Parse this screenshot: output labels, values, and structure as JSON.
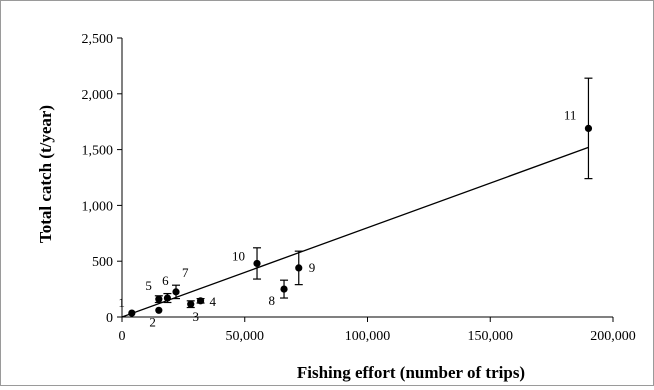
{
  "chart_data": {
    "type": "scatter",
    "xlabel": "Fishing effort (number of trips)",
    "ylabel": "Total  catch (t/year)",
    "xlim": [
      0,
      200000
    ],
    "ylim": [
      0,
      2500
    ],
    "x_ticks": [
      0,
      50000,
      100000,
      150000,
      200000
    ],
    "x_tick_labels": [
      "0",
      "50,000",
      "100,000",
      "150,000",
      "200,000"
    ],
    "y_ticks": [
      0,
      500,
      1000,
      1500,
      2000,
      2500
    ],
    "y_tick_labels": [
      "0",
      "500",
      "1,000",
      "1,500",
      "2,000",
      "2,500"
    ],
    "grid": false,
    "legend": "none",
    "marker_color": "#000000",
    "points": [
      {
        "label": "1",
        "x": 4000,
        "y": 35,
        "err": 0
      },
      {
        "label": "2",
        "x": 15000,
        "y": 60,
        "err": 0
      },
      {
        "label": "3",
        "x": 28000,
        "y": 115,
        "err": 30
      },
      {
        "label": "4",
        "x": 32000,
        "y": 145,
        "err": 20
      },
      {
        "label": "5",
        "x": 15000,
        "y": 160,
        "err": 30
      },
      {
        "label": "6",
        "x": 18500,
        "y": 170,
        "err": 40
      },
      {
        "label": "7",
        "x": 22000,
        "y": 225,
        "err": 60
      },
      {
        "label": "8",
        "x": 66000,
        "y": 250,
        "err": 80
      },
      {
        "label": "9",
        "x": 72000,
        "y": 440,
        "err": 150
      },
      {
        "label": "10",
        "x": 55000,
        "y": 480,
        "err": 140
      },
      {
        "label": "11",
        "x": 190000,
        "y": 1690,
        "err": 450
      }
    ],
    "trendline": {
      "x0": 0,
      "y0": 0,
      "x1": 190000,
      "y1": 1520
    }
  }
}
